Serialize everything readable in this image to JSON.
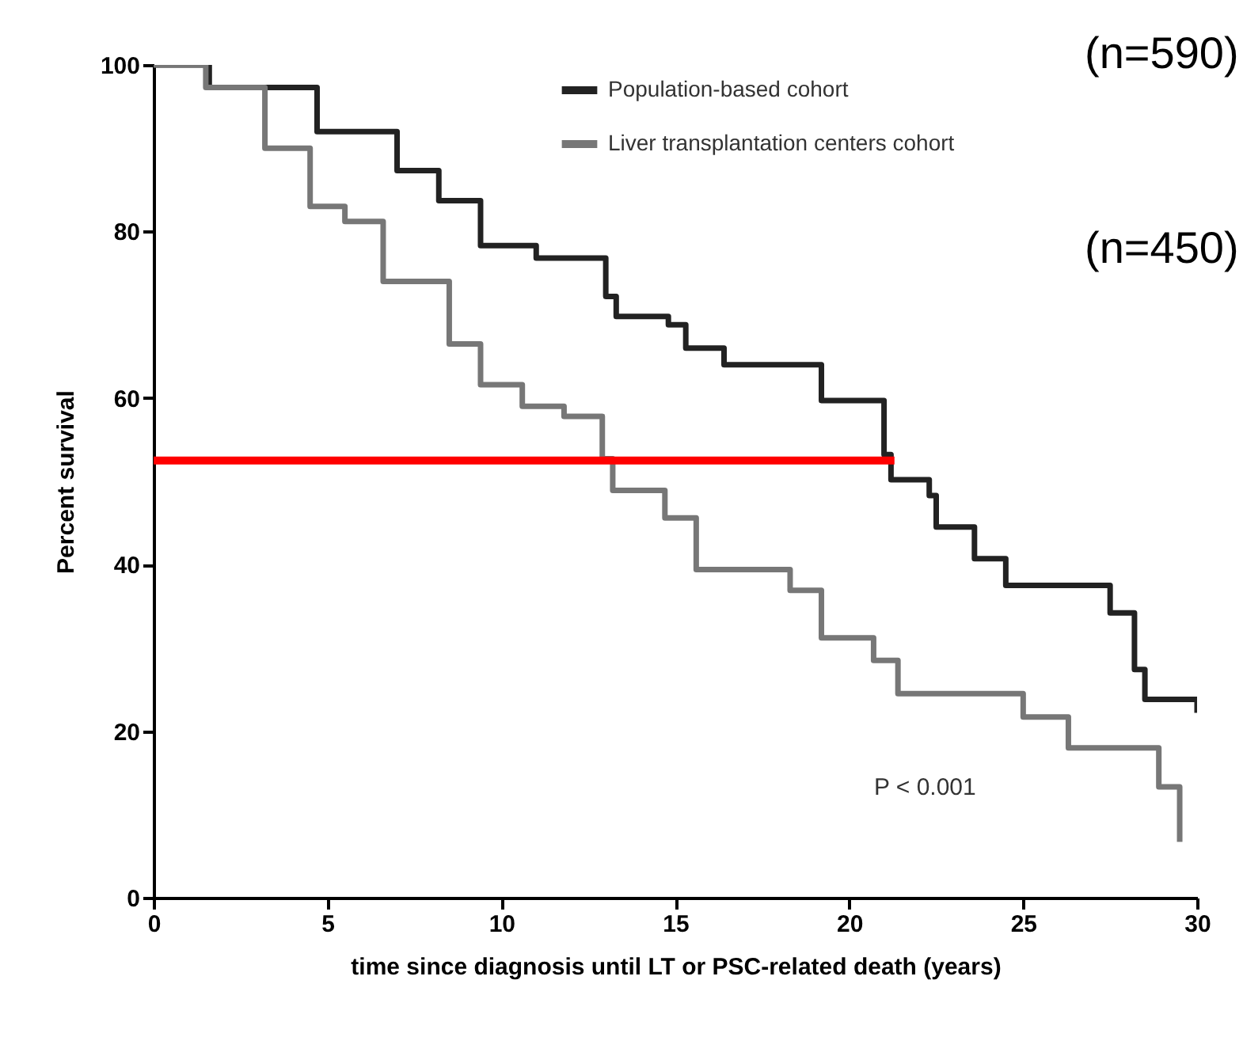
{
  "chart_data": {
    "type": "step",
    "xlabel": "time since diagnosis until LT or PSC-related death (years)",
    "ylabel": "Percent survival",
    "xlim": [
      0,
      30
    ],
    "xticks": [
      0,
      5,
      10,
      15,
      20,
      25,
      30
    ],
    "ylim": [
      0,
      100
    ],
    "yticks": [
      0,
      20,
      40,
      60,
      80,
      100
    ],
    "grid": false,
    "legend": "top right",
    "annotations": [
      "(n=590)",
      "(n=450)",
      "P < 0.001"
    ],
    "series": [
      {
        "name": "Population-based cohort",
        "color": "#222222",
        "x": [
          0,
          1.6,
          4.7,
          7,
          8.2,
          9.4,
          11,
          13,
          13.3,
          14.8,
          15.3,
          16.4,
          18.2,
          19.2,
          20.1,
          21,
          21.2,
          22.3,
          22.5,
          23.6,
          24.5,
          26.8,
          27.5,
          28.2,
          28.5,
          30,
          30
        ],
        "values": [
          100,
          97.3,
          92,
          87.3,
          83.7,
          78.3,
          76.8,
          72.2,
          69.8,
          68.8,
          66,
          64,
          64,
          59.7,
          59.7,
          53.2,
          50.2,
          48.3,
          44.5,
          40.7,
          37.5,
          37.5,
          34.2,
          27.4,
          23.8,
          23.8,
          22.2
        ]
      },
      {
        "name": "Liver transplantation centers cohort",
        "color": "#777777",
        "x": [
          0,
          1.5,
          3.2,
          4.5,
          5.5,
          6.6,
          8.5,
          9.4,
          10.6,
          11.8,
          12.9,
          13.2,
          14.7,
          15.6,
          18.3,
          19.2,
          20.7,
          21.4,
          25,
          26.3,
          28.9,
          29.5,
          29.5
        ],
        "values": [
          100,
          97.3,
          90,
          83,
          81.2,
          74,
          66.5,
          61.6,
          59,
          57.8,
          52.7,
          48.9,
          45.6,
          39.4,
          36.9,
          31.2,
          28.5,
          24.5,
          21.7,
          18,
          13.3,
          6.7,
          6.7
        ]
      },
      {
        "type": "line",
        "color": "#ff0000",
        "x": [
          0,
          21.3
        ],
        "values": [
          52.5,
          52.5
        ]
      }
    ]
  }
}
